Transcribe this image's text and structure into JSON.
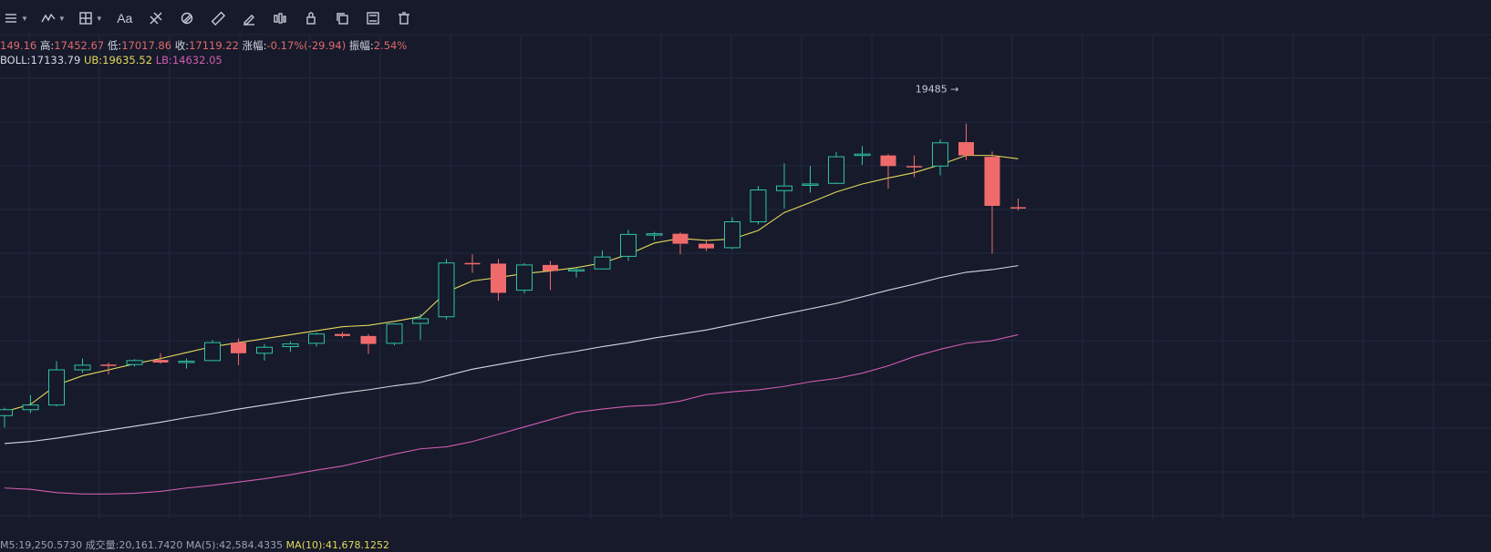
{
  "toolbar": {
    "tools": [
      {
        "name": "menu-icon",
        "caret": true
      },
      {
        "name": "indicator-icon",
        "caret": true
      },
      {
        "name": "crosshair-icon",
        "caret": true
      },
      {
        "name": "text-tool",
        "label": "Aa"
      },
      {
        "name": "fibonacci-icon"
      },
      {
        "name": "pattern-icon"
      },
      {
        "name": "ruler-icon"
      },
      {
        "name": "brush-icon"
      },
      {
        "name": "bars-icon"
      },
      {
        "name": "lock-icon"
      },
      {
        "name": "copy-icon"
      },
      {
        "name": "screenshot-icon"
      },
      {
        "name": "trash-icon"
      }
    ]
  },
  "ohlc": {
    "open_value": "149.16",
    "high_label": "高:",
    "high_value": "17452.67",
    "low_label": "低:",
    "low_value": "17017.86",
    "close_label": "收:",
    "close_value": "17119.22",
    "change_label": "涨幅:",
    "change_value": "-0.17%(-29.94)",
    "amplitude_label": "振幅:",
    "amplitude_value": "2.54%"
  },
  "boll": {
    "mid_label": "BOLL:",
    "mid_value": "17133.79",
    "ub_label": "UB:",
    "ub_value": "19635.52",
    "lb_label": "LB:",
    "lb_value": "14632.05"
  },
  "bottom": {
    "left_text": "M5:19,250.5730",
    "vol_text": "成交量:20,161.7420",
    "ma5_text": "MA(5):42,584.4335",
    "ma10_text": "MA(10):41,678.1252"
  },
  "colors": {
    "background": "#161a2b",
    "grid": "#232840",
    "up": "#2ec4a0",
    "down": "#ef6b6b",
    "boll_mid": "#d4d7e2",
    "boll_ub": "#e4d85a",
    "boll_lb": "#d05cb0"
  },
  "chart_data": {
    "type": "candlestick",
    "title": "",
    "xlabel": "",
    "ylabel": "",
    "ylim": [
      13000,
      20300
    ],
    "grid": true,
    "high_marker": {
      "label": "19485 →",
      "value": 19485
    },
    "candles": [
      {
        "o": 14560,
        "h": 14680,
        "l": 14380,
        "c": 14650
      },
      {
        "o": 14650,
        "h": 14870,
        "l": 14600,
        "c": 14720
      },
      {
        "o": 14720,
        "h": 15380,
        "l": 14700,
        "c": 15250
      },
      {
        "o": 15250,
        "h": 15420,
        "l": 15200,
        "c": 15320
      },
      {
        "o": 15330,
        "h": 15360,
        "l": 15180,
        "c": 15310
      },
      {
        "o": 15330,
        "h": 15410,
        "l": 15300,
        "c": 15390
      },
      {
        "o": 15400,
        "h": 15500,
        "l": 15340,
        "c": 15360
      },
      {
        "o": 15370,
        "h": 15420,
        "l": 15270,
        "c": 15380
      },
      {
        "o": 15390,
        "h": 15700,
        "l": 15380,
        "c": 15660
      },
      {
        "o": 15660,
        "h": 15720,
        "l": 15320,
        "c": 15500
      },
      {
        "o": 15500,
        "h": 15640,
        "l": 15390,
        "c": 15590
      },
      {
        "o": 15600,
        "h": 15680,
        "l": 15520,
        "c": 15640
      },
      {
        "o": 15650,
        "h": 15810,
        "l": 15600,
        "c": 15790
      },
      {
        "o": 15790,
        "h": 15820,
        "l": 15730,
        "c": 15760
      },
      {
        "o": 15760,
        "h": 15790,
        "l": 15490,
        "c": 15640
      },
      {
        "o": 15650,
        "h": 15950,
        "l": 15620,
        "c": 15940
      },
      {
        "o": 15950,
        "h": 16090,
        "l": 15700,
        "c": 16020
      },
      {
        "o": 16050,
        "h": 16920,
        "l": 16010,
        "c": 16860
      },
      {
        "o": 16860,
        "h": 16990,
        "l": 16710,
        "c": 16850
      },
      {
        "o": 16850,
        "h": 16920,
        "l": 16290,
        "c": 16410
      },
      {
        "o": 16450,
        "h": 16860,
        "l": 16400,
        "c": 16830
      },
      {
        "o": 16830,
        "h": 16890,
        "l": 16450,
        "c": 16740
      },
      {
        "o": 16740,
        "h": 16790,
        "l": 16640,
        "c": 16760
      },
      {
        "o": 16770,
        "h": 17050,
        "l": 16760,
        "c": 16950
      },
      {
        "o": 16960,
        "h": 17360,
        "l": 16890,
        "c": 17290
      },
      {
        "o": 17290,
        "h": 17330,
        "l": 17200,
        "c": 17300
      },
      {
        "o": 17300,
        "h": 17320,
        "l": 16990,
        "c": 17150
      },
      {
        "o": 17150,
        "h": 17200,
        "l": 17040,
        "c": 17080
      },
      {
        "o": 17090,
        "h": 17550,
        "l": 17070,
        "c": 17480
      },
      {
        "o": 17480,
        "h": 18020,
        "l": 17440,
        "c": 17960
      },
      {
        "o": 17950,
        "h": 18360,
        "l": 17680,
        "c": 18020
      },
      {
        "o": 18040,
        "h": 18320,
        "l": 17920,
        "c": 18050
      },
      {
        "o": 18060,
        "h": 18530,
        "l": 18050,
        "c": 18460
      },
      {
        "o": 18480,
        "h": 18620,
        "l": 18340,
        "c": 18500
      },
      {
        "o": 18480,
        "h": 18500,
        "l": 17980,
        "c": 18320
      },
      {
        "o": 18320,
        "h": 18480,
        "l": 18150,
        "c": 18310
      },
      {
        "o": 18320,
        "h": 18720,
        "l": 18180,
        "c": 18670
      },
      {
        "o": 18680,
        "h": 18960,
        "l": 18410,
        "c": 18480
      },
      {
        "o": 18460,
        "h": 18540,
        "l": 17000,
        "c": 17720
      },
      {
        "o": 17700,
        "h": 17830,
        "l": 17650,
        "c": 17680
      }
    ],
    "series": [
      {
        "name": "UB",
        "values": [
          14620,
          14730,
          15020,
          15160,
          15250,
          15340,
          15420,
          15510,
          15600,
          15660,
          15720,
          15780,
          15840,
          15900,
          15920,
          15980,
          16050,
          16420,
          16590,
          16640,
          16700,
          16740,
          16790,
          16860,
          16990,
          17160,
          17230,
          17200,
          17220,
          17350,
          17620,
          17770,
          17930,
          18050,
          18140,
          18220,
          18340,
          18480,
          18480,
          18430
        ]
      },
      {
        "name": "BOLL",
        "values": [
          14140,
          14170,
          14220,
          14280,
          14340,
          14400,
          14460,
          14530,
          14590,
          14660,
          14720,
          14780,
          14840,
          14900,
          14950,
          15010,
          15060,
          15160,
          15260,
          15330,
          15400,
          15470,
          15530,
          15600,
          15660,
          15730,
          15790,
          15850,
          15930,
          16010,
          16090,
          16170,
          16250,
          16350,
          16450,
          16540,
          16640,
          16720,
          16760,
          16820
        ]
      },
      {
        "name": "LB",
        "values": [
          13470,
          13450,
          13400,
          13380,
          13380,
          13390,
          13420,
          13470,
          13510,
          13560,
          13610,
          13670,
          13740,
          13800,
          13890,
          13980,
          14060,
          14090,
          14170,
          14280,
          14390,
          14500,
          14610,
          14660,
          14700,
          14720,
          14780,
          14880,
          14920,
          14950,
          15000,
          15070,
          15120,
          15200,
          15310,
          15450,
          15560,
          15650,
          15690,
          15780
        ]
      }
    ]
  }
}
